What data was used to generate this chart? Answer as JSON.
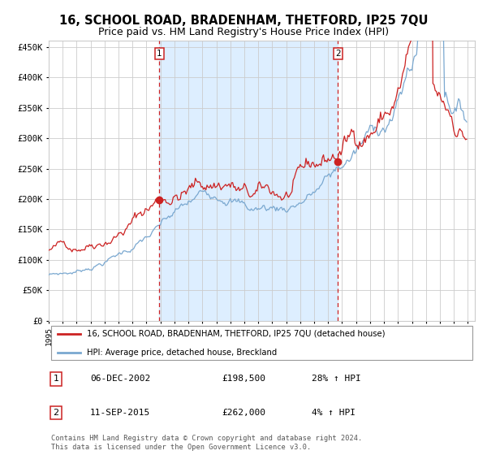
{
  "title": "16, SCHOOL ROAD, BRADENHAM, THETFORD, IP25 7QU",
  "subtitle": "Price paid vs. HM Land Registry's House Price Index (HPI)",
  "title_fontsize": 10.5,
  "subtitle_fontsize": 9,
  "ylim": [
    0,
    460000
  ],
  "yticks": [
    0,
    50000,
    100000,
    150000,
    200000,
    250000,
    300000,
    350000,
    400000,
    450000
  ],
  "ytick_labels": [
    "£0",
    "£50K",
    "£100K",
    "£150K",
    "£200K",
    "£250K",
    "£300K",
    "£350K",
    "£400K",
    "£450K"
  ],
  "year_start": 1995,
  "year_end": 2025,
  "marker1_year": 2002.92,
  "marker1_value": 198500,
  "marker2_year": 2015.7,
  "marker2_value": 262000,
  "vline1_year": 2002.92,
  "vline2_year": 2015.7,
  "legend_line1": "16, SCHOOL ROAD, BRADENHAM, THETFORD, IP25 7QU (detached house)",
  "legend_line2": "HPI: Average price, detached house, Breckland",
  "table_row1": [
    "1",
    "06-DEC-2002",
    "£198,500",
    "28% ↑ HPI"
  ],
  "table_row2": [
    "2",
    "11-SEP-2015",
    "£262,000",
    "4% ↑ HPI"
  ],
  "footer": "Contains HM Land Registry data © Crown copyright and database right 2024.\nThis data is licensed under the Open Government Licence v3.0.",
  "red_color": "#cc2222",
  "blue_color": "#7aa8d0",
  "bg_shaded": "#ddeeff",
  "grid_color": "#cccccc",
  "background_color": "#ffffff"
}
